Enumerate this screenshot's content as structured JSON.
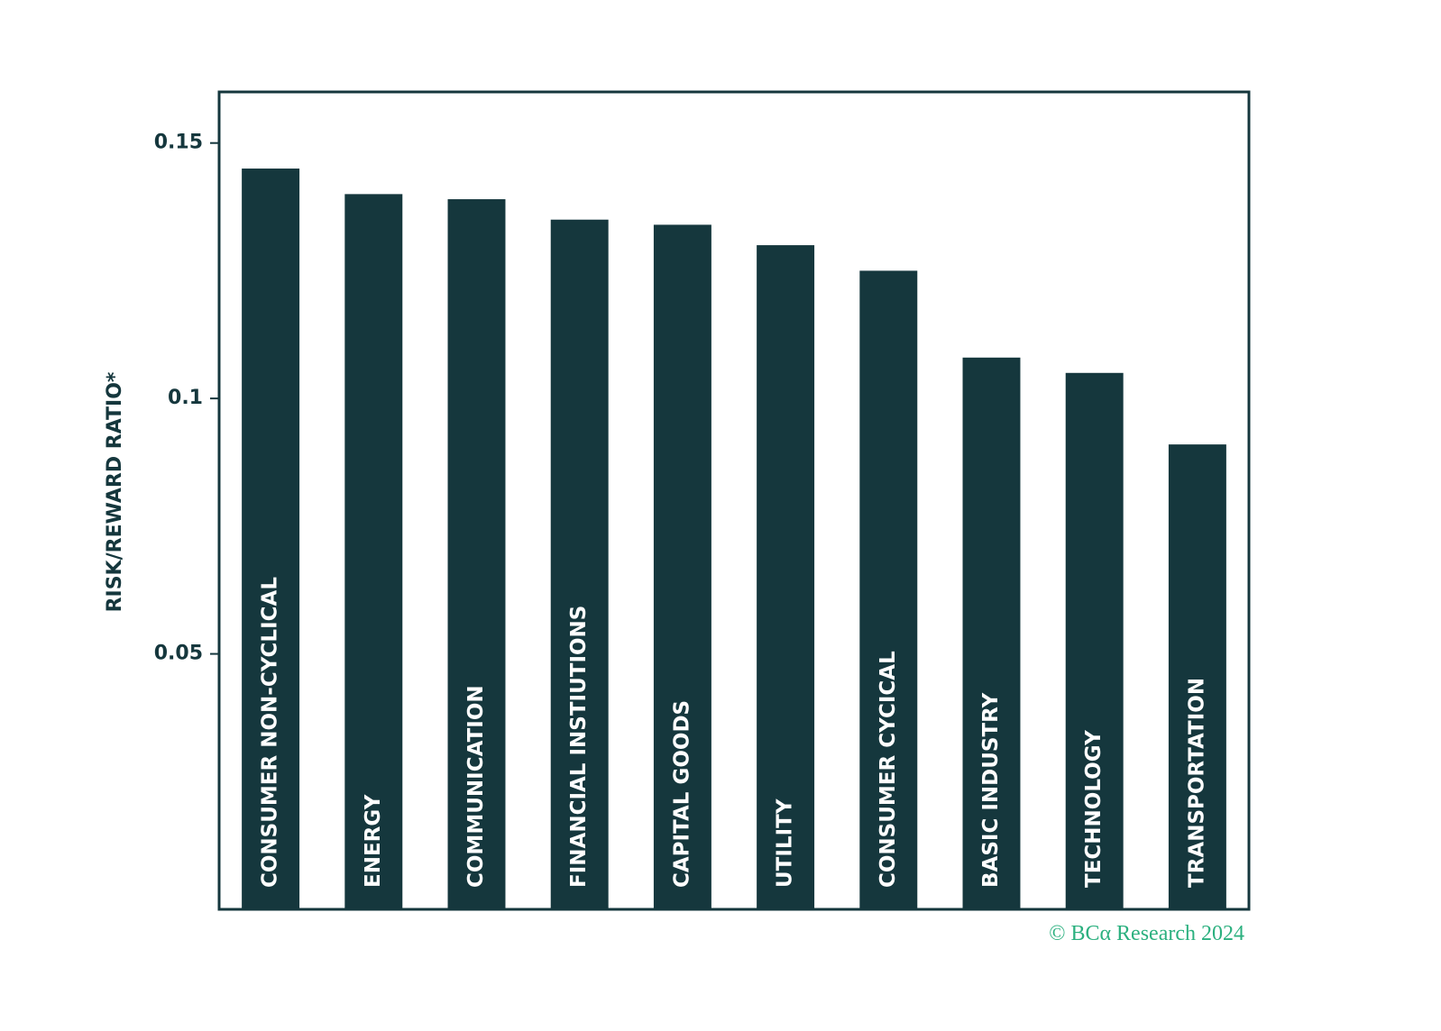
{
  "chart_data": {
    "type": "bar",
    "y_label": "RISK/REWARD RATIO*",
    "source": "© BCα Research 2024",
    "categories": [
      "CONSUMER NON-CYCLICAL",
      "ENERGY",
      "COMMUNICATION",
      "FINANCIAL INSTIUTIONS",
      "CAPITAL GOODS",
      "UTILITY",
      "CONSUMER CYCICAL",
      "BASIC INDUSTRY",
      "TECHNOLOGY",
      "TRANSPORTATION"
    ],
    "values": [
      0.145,
      0.14,
      0.139,
      0.135,
      0.134,
      0.13,
      0.125,
      0.108,
      0.105,
      0.091
    ],
    "color": "#15373d",
    "ylim": [
      0,
      0.16
    ],
    "yticks": [
      0.05,
      0.1,
      0.15
    ],
    "grid": false
  }
}
